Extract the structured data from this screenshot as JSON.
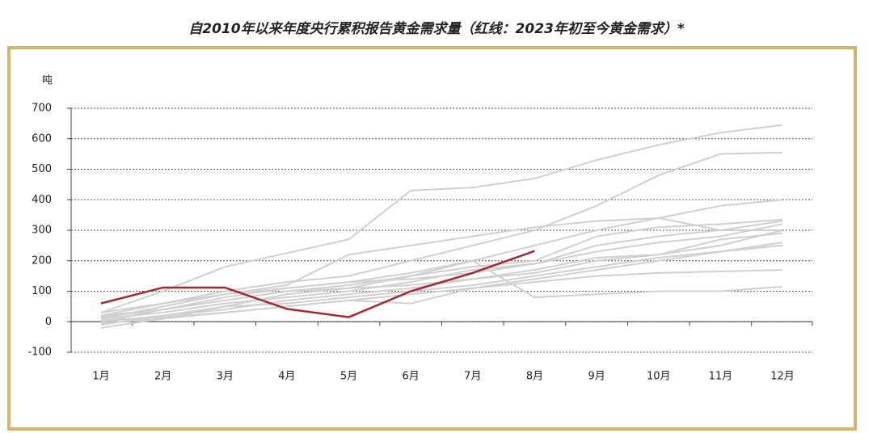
{
  "chart_data": {
    "type": "line",
    "title": "自2010年以来年度央行累积报告黄金需求量（红线：2023年初至今黄金需求）*",
    "y_label": "吨",
    "categories": [
      "1月",
      "2月",
      "3月",
      "4月",
      "5月",
      "6月",
      "7月",
      "8月",
      "9月",
      "10月",
      "11月",
      "12月"
    ],
    "series": [
      {
        "color": "#d0d0d0",
        "values": [
          30,
          100,
          180,
          225,
          270,
          430,
          440,
          470,
          530,
          580,
          620,
          645
        ]
      },
      {
        "color": "#d0d0d0",
        "values": [
          20,
          60,
          100,
          130,
          150,
          200,
          250,
          300,
          380,
          480,
          550,
          555
        ]
      },
      {
        "color": "#d0d0d0",
        "values": [
          10,
          50,
          90,
          120,
          220,
          250,
          280,
          310,
          330,
          340,
          380,
          400
        ]
      },
      {
        "color": "#d0d0d0",
        "values": [
          0,
          40,
          80,
          110,
          130,
          160,
          200,
          250,
          300,
          340,
          300,
          300
        ]
      },
      {
        "color": "#d0d0d0",
        "values": [
          -20,
          10,
          50,
          90,
          110,
          150,
          180,
          200,
          280,
          310,
          320,
          335
        ]
      },
      {
        "color": "#d0d0d0",
        "values": [
          20,
          40,
          70,
          100,
          120,
          150,
          200,
          80,
          90,
          100,
          100,
          115
        ]
      },
      {
        "color": "#d0d0d0",
        "values": [
          10,
          30,
          60,
          80,
          100,
          130,
          170,
          190,
          250,
          280,
          300,
          330
        ]
      },
      {
        "color": "#d0d0d0",
        "values": [
          -10,
          20,
          40,
          70,
          90,
          110,
          140,
          170,
          210,
          220,
          270,
          290
        ]
      },
      {
        "color": "#d0d0d0",
        "values": [
          30,
          60,
          90,
          110,
          130,
          140,
          160,
          190,
          230,
          260,
          280,
          320
        ]
      },
      {
        "color": "#d0d0d0",
        "values": [
          0,
          20,
          50,
          60,
          80,
          100,
          120,
          150,
          180,
          210,
          230,
          250
        ]
      },
      {
        "color": "#d0d0d0",
        "values": [
          5,
          15,
          30,
          50,
          70,
          90,
          110,
          130,
          150,
          160,
          165,
          170
        ]
      },
      {
        "color": "#d0d0d0",
        "values": [
          15,
          40,
          70,
          100,
          110,
          120,
          140,
          160,
          200,
          220,
          250,
          300
        ]
      },
      {
        "color": "#d0d0d0",
        "values": [
          -5,
          10,
          30,
          50,
          70,
          60,
          110,
          140,
          170,
          200,
          230,
          260
        ]
      },
      {
        "color": "#a3282f",
        "values": [
          60,
          112,
          112,
          42,
          15,
          100,
          160,
          232,
          null,
          null,
          null,
          null
        ]
      }
    ],
    "ylim": [
      -100,
      700
    ],
    "yticks": [
      -100,
      0,
      100,
      200,
      300,
      400,
      500,
      600,
      700
    ],
    "grid": true
  }
}
